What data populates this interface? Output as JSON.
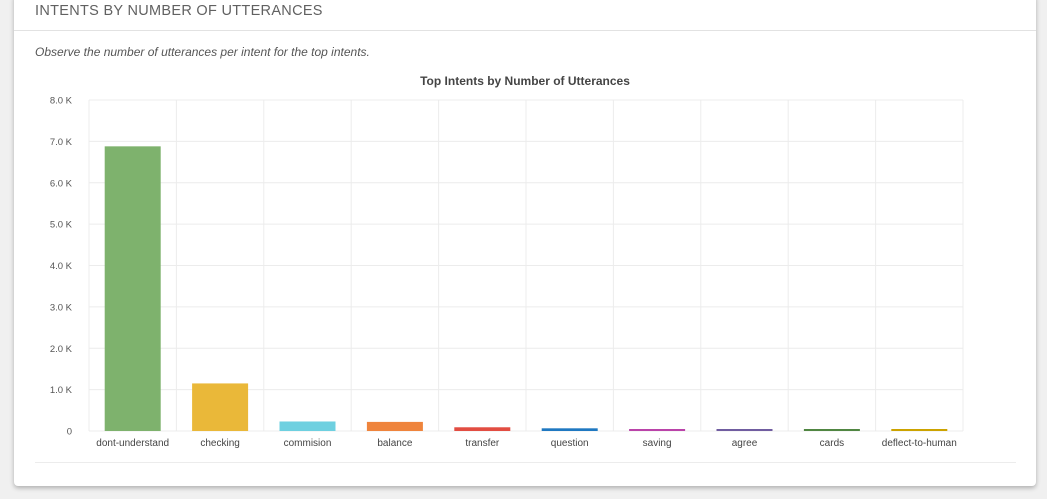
{
  "panel": {
    "title": "INTENTS BY NUMBER OF UTTERANCES",
    "description": "Observe the number of utterances per intent for the top intents."
  },
  "chart_data": {
    "type": "bar",
    "title": "Top Intents by Number of Utterances",
    "xlabel": "",
    "ylabel": "",
    "ylim": [
      0,
      8000
    ],
    "yticks": [
      {
        "value": 0,
        "label": "0"
      },
      {
        "value": 1000,
        "label": "1.0 K"
      },
      {
        "value": 2000,
        "label": "2.0 K"
      },
      {
        "value": 3000,
        "label": "3.0 K"
      },
      {
        "value": 4000,
        "label": "4.0 K"
      },
      {
        "value": 5000,
        "label": "5.0 K"
      },
      {
        "value": 6000,
        "label": "6.0 K"
      },
      {
        "value": 7000,
        "label": "7.0 K"
      },
      {
        "value": 8000,
        "label": "8.0 K"
      }
    ],
    "grid": true,
    "legend": "none",
    "categories": [
      "dont-understand",
      "checking",
      "commision",
      "balance",
      "transfer",
      "question",
      "saving",
      "agree",
      "cards",
      "deflect-to-human"
    ],
    "values": [
      6880,
      1150,
      230,
      220,
      90,
      65,
      45,
      40,
      35,
      35
    ],
    "colors": [
      "#7eb26d",
      "#eab839",
      "#6ed0e0",
      "#ef843c",
      "#e24d42",
      "#1f78c1",
      "#ba43a9",
      "#705da0",
      "#508642",
      "#cca300"
    ]
  }
}
